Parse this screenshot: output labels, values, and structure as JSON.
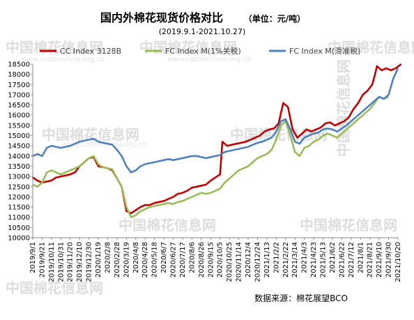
{
  "chart_data": {
    "type": "line",
    "title": "国内外棉花现货价格对比",
    "unit_note": "（单位：元/吨）",
    "subtitle": "(2019.9.1-2021.10.27)",
    "source": "数据来源：棉花展望BCO",
    "watermark": "中国棉花信息网",
    "watermark_url": "www.cottonchina.org.cn",
    "ylim": [
      10000,
      18500
    ],
    "yticks": [
      10000,
      10500,
      11000,
      11500,
      12000,
      12500,
      13000,
      13500,
      14000,
      14500,
      15000,
      15500,
      16000,
      16500,
      17000,
      17500,
      18000,
      18500
    ],
    "x_start": "2019/9/1",
    "x_end": "2021/10/20",
    "x_tick_labels": [
      "2019/9/1",
      "2019/9/21",
      "2019/10/11",
      "2019/10/31",
      "2019/11/20",
      "2019/12/10",
      "2019/12/30",
      "2020/1/19",
      "2020/2/8",
      "2020/2/28",
      "2020/3/19",
      "2020/4/8",
      "2020/4/28",
      "2020/5/18",
      "2020/6/7",
      "2020/6/27",
      "2020/7/17",
      "2020/8/6",
      "2020/8/26",
      "2020/9/15",
      "2020/10/5",
      "2020/10/25",
      "2020/11/14",
      "2020/12/4",
      "2020/12/24",
      "2021/1/13",
      "2021/2/2",
      "2021/2/22",
      "2021/3/14",
      "2021/4/3",
      "2021/4/23",
      "2021/5/13",
      "2021/6/2",
      "2021/6/22",
      "2021/7/12",
      "2021/8/1",
      "2021/8/21",
      "2021/9/10",
      "2021/9/30",
      "2021/10/20"
    ],
    "legend_position": "top",
    "grid": false,
    "series": [
      {
        "name": "CC Index 3128B",
        "color": "#c00000",
        "points": [
          [
            "2019/9/1",
            12950
          ],
          [
            "2019/9/11",
            12800
          ],
          [
            "2019/9/21",
            12700
          ],
          [
            "2019/10/1",
            12750
          ],
          [
            "2019/10/11",
            12800
          ],
          [
            "2019/10/21",
            12950
          ],
          [
            "2019/10/31",
            13000
          ],
          [
            "2019/11/10",
            13050
          ],
          [
            "2019/11/20",
            13100
          ],
          [
            "2019/11/30",
            13200
          ],
          [
            "2019/12/10",
            13500
          ],
          [
            "2019/12/20",
            13700
          ],
          [
            "2019/12/30",
            13900
          ],
          [
            "2020/1/9",
            13950
          ],
          [
            "2020/1/19",
            13500
          ],
          [
            "2020/1/29",
            13450
          ],
          [
            "2020/2/8",
            13400
          ],
          [
            "2020/2/18",
            13300
          ],
          [
            "2020/2/28",
            12900
          ],
          [
            "2020/3/9",
            12500
          ],
          [
            "2020/3/19",
            11300
          ],
          [
            "2020/3/29",
            11200
          ],
          [
            "2020/4/8",
            11350
          ],
          [
            "2020/4/18",
            11500
          ],
          [
            "2020/4/28",
            11600
          ],
          [
            "2020/5/8",
            11600
          ],
          [
            "2020/5/18",
            11700
          ],
          [
            "2020/5/28",
            11750
          ],
          [
            "2020/6/7",
            11800
          ],
          [
            "2020/6/17",
            11900
          ],
          [
            "2020/6/27",
            12000
          ],
          [
            "2020/7/7",
            12150
          ],
          [
            "2020/7/17",
            12200
          ],
          [
            "2020/7/27",
            12300
          ],
          [
            "2020/8/6",
            12450
          ],
          [
            "2020/8/16",
            12500
          ],
          [
            "2020/8/26",
            12550
          ],
          [
            "2020/9/5",
            12600
          ],
          [
            "2020/9/15",
            12800
          ],
          [
            "2020/9/25",
            12950
          ],
          [
            "2020/10/5",
            13100
          ],
          [
            "2020/10/10",
            14700
          ],
          [
            "2020/10/20",
            14500
          ],
          [
            "2020/10/30",
            14550
          ],
          [
            "2020/11/9",
            14600
          ],
          [
            "2020/11/19",
            14650
          ],
          [
            "2020/11/29",
            14700
          ],
          [
            "2020/12/9",
            14800
          ],
          [
            "2020/12/19",
            14900
          ],
          [
            "2020/12/29",
            15000
          ],
          [
            "2021/1/8",
            15200
          ],
          [
            "2021/1/18",
            15300
          ],
          [
            "2021/1/28",
            15350
          ],
          [
            "2021/2/7",
            15600
          ],
          [
            "2021/2/17",
            16600
          ],
          [
            "2021/2/27",
            16400
          ],
          [
            "2021/3/9",
            15300
          ],
          [
            "2021/3/19",
            14900
          ],
          [
            "2021/3/29",
            15100
          ],
          [
            "2021/4/8",
            15300
          ],
          [
            "2021/4/18",
            15200
          ],
          [
            "2021/4/28",
            15300
          ],
          [
            "2021/5/8",
            15400
          ],
          [
            "2021/5/18",
            15600
          ],
          [
            "2021/5/28",
            15650
          ],
          [
            "2021/6/7",
            15500
          ],
          [
            "2021/6/17",
            15600
          ],
          [
            "2021/6/27",
            15700
          ],
          [
            "2021/7/7",
            15900
          ],
          [
            "2021/7/17",
            16300
          ],
          [
            "2021/7/27",
            16600
          ],
          [
            "2021/8/6",
            17000
          ],
          [
            "2021/8/16",
            17200
          ],
          [
            "2021/8/26",
            17500
          ],
          [
            "2021/9/1",
            18000
          ],
          [
            "2021/9/5",
            18400
          ],
          [
            "2021/9/15",
            18200
          ],
          [
            "2021/9/25",
            18300
          ],
          [
            "2021/10/5",
            18200
          ],
          [
            "2021/10/15",
            18300
          ],
          [
            "2021/10/27",
            18500
          ]
        ]
      },
      {
        "name": "FC Index M(1%关税)",
        "color": "#9bbb59",
        "points": [
          [
            "2019/9/1",
            12600
          ],
          [
            "2019/9/11",
            12500
          ],
          [
            "2019/9/21",
            12700
          ],
          [
            "2019/10/1",
            13200
          ],
          [
            "2019/10/11",
            13300
          ],
          [
            "2019/10/21",
            13200
          ],
          [
            "2019/10/31",
            13100
          ],
          [
            "2019/11/10",
            13200
          ],
          [
            "2019/11/20",
            13300
          ],
          [
            "2019/11/30",
            13400
          ],
          [
            "2019/12/10",
            13500
          ],
          [
            "2019/12/20",
            13700
          ],
          [
            "2019/12/30",
            13900
          ],
          [
            "2020/1/9",
            14000
          ],
          [
            "2020/1/19",
            13600
          ],
          [
            "2020/1/29",
            13450
          ],
          [
            "2020/2/8",
            13400
          ],
          [
            "2020/2/18",
            13350
          ],
          [
            "2020/2/28",
            12900
          ],
          [
            "2020/3/9",
            12500
          ],
          [
            "2020/3/19",
            11500
          ],
          [
            "2020/3/29",
            11000
          ],
          [
            "2020/4/8",
            11100
          ],
          [
            "2020/4/18",
            11300
          ],
          [
            "2020/4/28",
            11400
          ],
          [
            "2020/5/8",
            11500
          ],
          [
            "2020/5/18",
            11550
          ],
          [
            "2020/5/28",
            11600
          ],
          [
            "2020/6/7",
            11650
          ],
          [
            "2020/6/17",
            11700
          ],
          [
            "2020/6/27",
            11650
          ],
          [
            "2020/7/7",
            11750
          ],
          [
            "2020/7/17",
            11800
          ],
          [
            "2020/7/27",
            11900
          ],
          [
            "2020/8/6",
            12000
          ],
          [
            "2020/8/16",
            12100
          ],
          [
            "2020/8/26",
            12200
          ],
          [
            "2020/9/5",
            12150
          ],
          [
            "2020/9/15",
            12200
          ],
          [
            "2020/9/25",
            12300
          ],
          [
            "2020/10/5",
            12400
          ],
          [
            "2020/10/15",
            12700
          ],
          [
            "2020/10/25",
            12900
          ],
          [
            "2020/11/4",
            13100
          ],
          [
            "2020/11/14",
            13300
          ],
          [
            "2020/11/24",
            13400
          ],
          [
            "2020/12/4",
            13500
          ],
          [
            "2020/12/14",
            13700
          ],
          [
            "2020/12/24",
            13900
          ],
          [
            "2021/1/3",
            14000
          ],
          [
            "2021/1/13",
            14100
          ],
          [
            "2021/1/23",
            14300
          ],
          [
            "2021/2/2",
            14800
          ],
          [
            "2021/2/12",
            15500
          ],
          [
            "2021/2/22",
            15700
          ],
          [
            "2021/3/4",
            15000
          ],
          [
            "2021/3/14",
            14200
          ],
          [
            "2021/3/24",
            14000
          ],
          [
            "2021/4/3",
            14400
          ],
          [
            "2021/4/13",
            14500
          ],
          [
            "2021/4/23",
            14700
          ],
          [
            "2021/5/3",
            14800
          ],
          [
            "2021/5/13",
            15000
          ],
          [
            "2021/5/23",
            15100
          ],
          [
            "2021/6/2",
            15000
          ],
          [
            "2021/6/12",
            14900
          ],
          [
            "2021/6/22",
            15100
          ],
          [
            "2021/7/2",
            15300
          ],
          [
            "2021/7/12",
            15500
          ],
          [
            "2021/7/22",
            15700
          ],
          [
            "2021/8/1",
            15900
          ],
          [
            "2021/8/11",
            16100
          ],
          [
            "2021/8/21",
            16300
          ],
          [
            "2021/8/31",
            16600
          ],
          [
            "2021/9/10",
            16900
          ],
          [
            "2021/9/20",
            16800
          ],
          [
            "2021/9/30",
            16900
          ]
        ]
      },
      {
        "name": "FC Index M(滑准税)",
        "color": "#4f81bd",
        "points": [
          [
            "2019/9/1",
            14000
          ],
          [
            "2019/9/11",
            14100
          ],
          [
            "2019/9/21",
            14000
          ],
          [
            "2019/10/1",
            14400
          ],
          [
            "2019/10/11",
            14500
          ],
          [
            "2019/10/21",
            14450
          ],
          [
            "2019/10/31",
            14400
          ],
          [
            "2019/11/10",
            14450
          ],
          [
            "2019/11/20",
            14500
          ],
          [
            "2019/11/30",
            14600
          ],
          [
            "2019/12/10",
            14700
          ],
          [
            "2019/12/20",
            14750
          ],
          [
            "2019/12/30",
            14800
          ],
          [
            "2020/1/9",
            14850
          ],
          [
            "2020/1/19",
            14700
          ],
          [
            "2020/1/29",
            14650
          ],
          [
            "2020/2/8",
            14600
          ],
          [
            "2020/2/18",
            14550
          ],
          [
            "2020/2/28",
            14300
          ],
          [
            "2020/3/9",
            14000
          ],
          [
            "2020/3/19",
            13500
          ],
          [
            "2020/3/29",
            13200
          ],
          [
            "2020/4/8",
            13300
          ],
          [
            "2020/4/18",
            13500
          ],
          [
            "2020/4/28",
            13600
          ],
          [
            "2020/5/8",
            13650
          ],
          [
            "2020/5/18",
            13700
          ],
          [
            "2020/5/28",
            13750
          ],
          [
            "2020/6/7",
            13800
          ],
          [
            "2020/6/17",
            13850
          ],
          [
            "2020/6/27",
            13800
          ],
          [
            "2020/7/7",
            13850
          ],
          [
            "2020/7/17",
            13900
          ],
          [
            "2020/7/27",
            13950
          ],
          [
            "2020/8/6",
            14000
          ],
          [
            "2020/8/16",
            14000
          ],
          [
            "2020/8/26",
            13950
          ],
          [
            "2020/9/5",
            13900
          ],
          [
            "2020/9/15",
            13950
          ],
          [
            "2020/9/25",
            14000
          ],
          [
            "2020/10/5",
            14050
          ],
          [
            "2020/10/15",
            14200
          ],
          [
            "2020/10/25",
            14250
          ],
          [
            "2020/11/4",
            14300
          ],
          [
            "2020/11/14",
            14350
          ],
          [
            "2020/11/24",
            14400
          ],
          [
            "2020/12/4",
            14450
          ],
          [
            "2020/12/14",
            14550
          ],
          [
            "2020/12/24",
            14650
          ],
          [
            "2021/1/3",
            14700
          ],
          [
            "2021/1/13",
            14800
          ],
          [
            "2021/1/23",
            14900
          ],
          [
            "2021/2/2",
            15200
          ],
          [
            "2021/2/12",
            15700
          ],
          [
            "2021/2/22",
            15800
          ],
          [
            "2021/3/4",
            15300
          ],
          [
            "2021/3/14",
            14700
          ],
          [
            "2021/3/24",
            14600
          ],
          [
            "2021/4/3",
            14900
          ],
          [
            "2021/4/13",
            15000
          ],
          [
            "2021/4/23",
            15100
          ],
          [
            "2021/5/3",
            15150
          ],
          [
            "2021/5/13",
            15300
          ],
          [
            "2021/5/23",
            15350
          ],
          [
            "2021/6/2",
            15300
          ],
          [
            "2021/6/12",
            15200
          ],
          [
            "2021/6/22",
            15350
          ],
          [
            "2021/7/2",
            15500
          ],
          [
            "2021/7/12",
            15700
          ],
          [
            "2021/7/22",
            15900
          ],
          [
            "2021/8/1",
            16100
          ],
          [
            "2021/8/11",
            16300
          ],
          [
            "2021/8/21",
            16500
          ],
          [
            "2021/8/31",
            16700
          ],
          [
            "2021/9/10",
            16900
          ],
          [
            "2021/9/20",
            16800
          ],
          [
            "2021/9/30",
            17000
          ],
          [
            "2021/10/10",
            17800
          ],
          [
            "2021/10/20",
            18300
          ]
        ]
      }
    ]
  }
}
